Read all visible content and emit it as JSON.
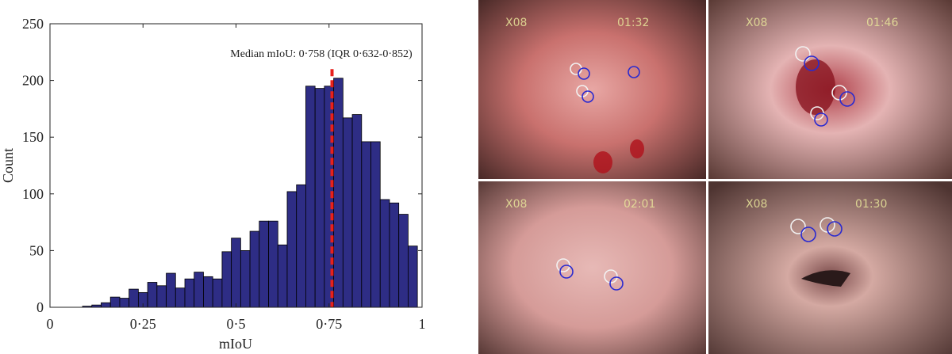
{
  "chart_data": {
    "type": "histogram",
    "xlabel": "mIoU",
    "ylabel": "Count",
    "annotation": "Median mIoU: 0·758 (IQR 0·632-0·852)",
    "median": 0.758,
    "median_color": "#e8201c",
    "color": "#2e2d85",
    "bins": [
      0.0875,
      0.1125,
      0.1375,
      0.1625,
      0.1875,
      0.2125,
      0.2375,
      0.2625,
      0.2875,
      0.3125,
      0.3375,
      0.3625,
      0.3875,
      0.4125,
      0.4375,
      0.4625,
      0.4875,
      0.5125,
      0.5375,
      0.5625,
      0.5875,
      0.6125,
      0.6375,
      0.6625,
      0.6875,
      0.7125,
      0.7375,
      0.7625,
      0.7875,
      0.8125,
      0.8375,
      0.8625,
      0.8875,
      0.9125,
      0.9375,
      0.9625,
      0.9875
    ],
    "values": [
      1,
      2,
      4,
      9,
      8,
      16,
      13,
      22,
      19,
      30,
      17,
      25,
      31,
      27,
      25,
      49,
      61,
      50,
      67,
      76,
      76,
      55,
      102,
      108,
      195,
      193,
      195,
      202,
      167,
      170,
      146,
      146,
      95,
      92,
      82,
      54
    ],
    "xlim": [
      0,
      1
    ],
    "xticks": [
      0,
      {
        "value": 0.25,
        "label": "0·25"
      },
      {
        "value": 0.5,
        "label": "0·5"
      },
      {
        "value": 0.75,
        "label": "0·75"
      },
      1
    ],
    "ylim": [
      0,
      250
    ],
    "yticks": [
      0,
      50,
      100,
      150,
      200,
      250
    ]
  },
  "images": [
    {
      "label": "X08",
      "time": "01:32"
    },
    {
      "label": "X08",
      "time": "01:46"
    },
    {
      "label": "X08",
      "time": "02:01"
    },
    {
      "label": "X08",
      "time": "01:30"
    }
  ]
}
